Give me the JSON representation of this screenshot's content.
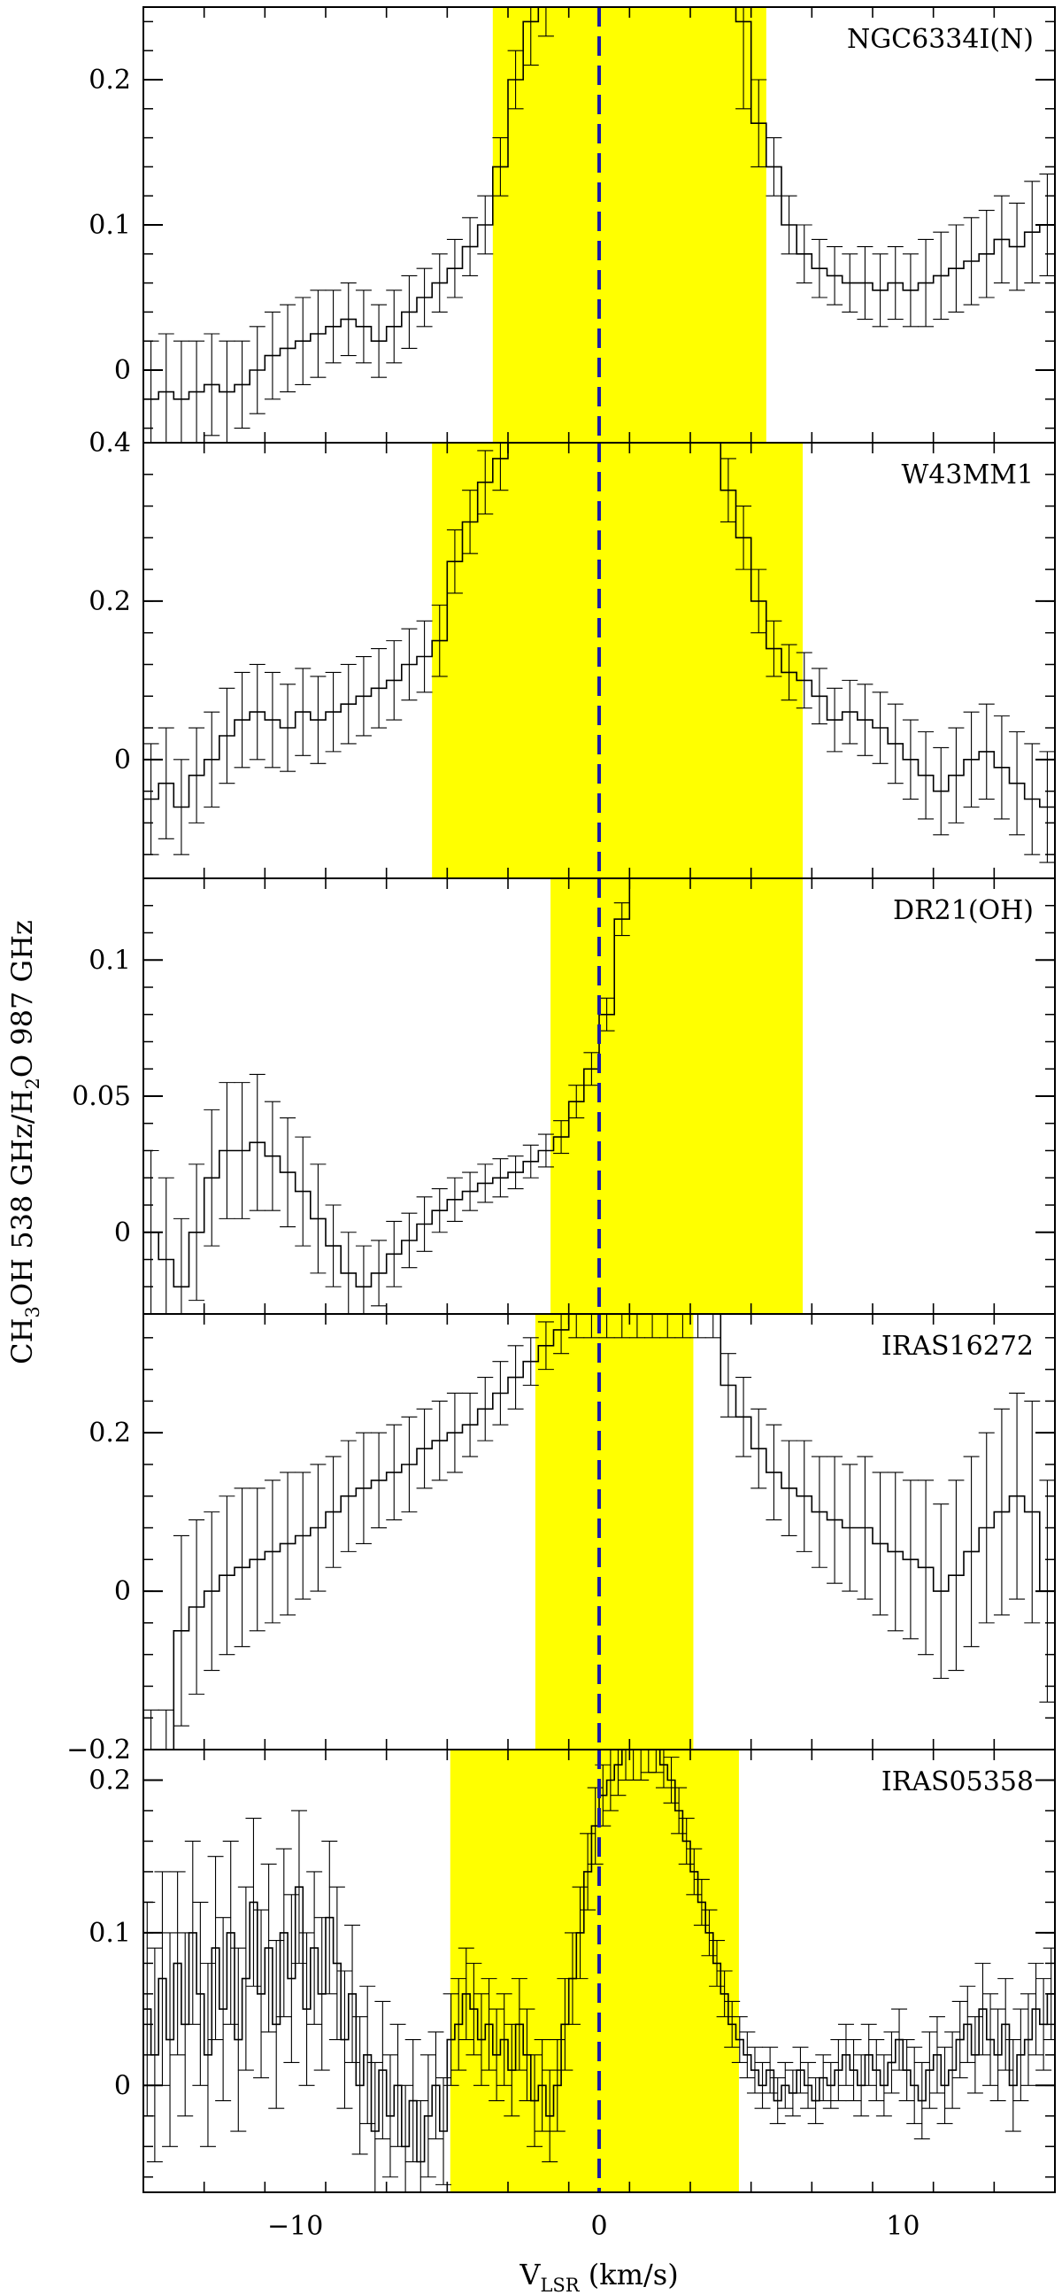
{
  "chart_data": {
    "type": "step",
    "xlabel": "V",
    "xlabel_sub": "LSR",
    "xlabel_unit": " (km/s)",
    "ylabel": {
      "parts": [
        {
          "t": "CH"
        },
        {
          "t": "3",
          "sub": true
        },
        {
          "t": "OH  538 GHz/H"
        },
        {
          "t": "2",
          "sub": true
        },
        {
          "t": "O 987 GHz"
        }
      ]
    },
    "xlim": [
      -15,
      15
    ],
    "xticks": [
      -10,
      0,
      10
    ],
    "xtick_labels": [
      "−10",
      "0",
      "10"
    ],
    "reference_line": {
      "x": 0,
      "color": "#1a1aa8",
      "style": "dashed"
    },
    "shade_color": "#ffff00",
    "panels": [
      {
        "name": "NGC6334I(N)",
        "ylim": [
          -0.05,
          0.25
        ],
        "yticks": [
          0,
          0.1,
          0.2
        ],
        "ytick_labels": [
          "0",
          "0.1",
          "0.2"
        ],
        "shade": [
          -3.5,
          5.5
        ],
        "x": [
          -15,
          -14.5,
          -14,
          -13.5,
          -13,
          -12.5,
          -12,
          -11.5,
          -11,
          -10.5,
          -10,
          -9.5,
          -9,
          -8.5,
          -8,
          -7.5,
          -7,
          -6.5,
          -6,
          -5.5,
          -5,
          -4.5,
          -4,
          -3.5,
          -3,
          -2.5,
          -2,
          -1.5,
          -1,
          -0.5,
          0,
          0.5,
          1,
          1.5,
          2,
          2.5,
          3,
          3.5,
          4,
          4.5,
          5,
          5.5,
          6,
          6.5,
          7,
          7.5,
          8,
          8.5,
          9,
          9.5,
          10,
          10.5,
          11,
          11.5,
          12,
          12.5,
          13,
          13.5,
          14,
          14.5
        ],
        "y": [
          -0.02,
          -0.015,
          -0.02,
          -0.015,
          -0.01,
          -0.015,
          -0.01,
          0.0,
          0.01,
          0.015,
          0.02,
          0.025,
          0.03,
          0.035,
          0.03,
          0.02,
          0.03,
          0.04,
          0.05,
          0.06,
          0.07,
          0.085,
          0.1,
          0.14,
          0.2,
          0.24,
          0.26,
          0.28,
          0.3,
          0.3,
          0.3,
          0.3,
          0.3,
          0.3,
          0.3,
          0.3,
          0.3,
          0.3,
          0.3,
          0.24,
          0.17,
          0.14,
          0.1,
          0.08,
          0.07,
          0.065,
          0.06,
          0.06,
          0.055,
          0.06,
          0.055,
          0.06,
          0.065,
          0.07,
          0.075,
          0.08,
          0.09,
          0.085,
          0.095,
          0.1
        ],
        "err": [
          0.04,
          0.04,
          0.04,
          0.035,
          0.035,
          0.035,
          0.03,
          0.03,
          0.03,
          0.03,
          0.03,
          0.03,
          0.025,
          0.025,
          0.025,
          0.025,
          0.025,
          0.025,
          0.02,
          0.02,
          0.02,
          0.02,
          0.02,
          0.02,
          0.02,
          0.03,
          0.03,
          0.03,
          0.03,
          0.03,
          0.03,
          0.03,
          0.03,
          0.03,
          0.03,
          0.03,
          0.03,
          0.03,
          0.03,
          0.06,
          0.03,
          0.02,
          0.02,
          0.02,
          0.02,
          0.02,
          0.02,
          0.025,
          0.025,
          0.025,
          0.025,
          0.03,
          0.03,
          0.03,
          0.03,
          0.03,
          0.03,
          0.03,
          0.035,
          0.035
        ]
      },
      {
        "name": "W43MM1",
        "ylim": [
          -0.15,
          0.4
        ],
        "yticks": [
          0,
          0.2,
          0.4
        ],
        "ytick_labels": [
          "0",
          "0.2",
          "0.4"
        ],
        "shade": [
          -5.5,
          6.7
        ],
        "x": [
          -15,
          -14.5,
          -14,
          -13.5,
          -13,
          -12.5,
          -12,
          -11.5,
          -11,
          -10.5,
          -10,
          -9.5,
          -9,
          -8.5,
          -8,
          -7.5,
          -7,
          -6.5,
          -6,
          -5.5,
          -5,
          -4.5,
          -4,
          -3.5,
          -3,
          -2.5,
          -2,
          -1.5,
          -1,
          -0.5,
          0,
          0.5,
          1,
          1.5,
          2,
          2.5,
          3,
          3.5,
          4,
          4.5,
          5,
          5.5,
          6,
          6.5,
          7,
          7.5,
          8,
          8.5,
          9,
          9.5,
          10,
          10.5,
          11,
          11.5,
          12,
          12.5,
          13,
          13.5,
          14,
          14.5
        ],
        "y": [
          -0.05,
          -0.03,
          -0.06,
          -0.02,
          0.0,
          0.03,
          0.05,
          0.06,
          0.05,
          0.04,
          0.06,
          0.05,
          0.06,
          0.07,
          0.08,
          0.09,
          0.1,
          0.12,
          0.13,
          0.15,
          0.25,
          0.3,
          0.35,
          0.38,
          0.45,
          0.5,
          0.5,
          0.5,
          0.5,
          0.5,
          0.5,
          0.5,
          0.5,
          0.5,
          0.5,
          0.5,
          0.5,
          0.5,
          0.34,
          0.28,
          0.2,
          0.14,
          0.11,
          0.1,
          0.08,
          0.05,
          0.06,
          0.05,
          0.04,
          0.02,
          0.0,
          -0.02,
          -0.04,
          -0.02,
          0.0,
          0.01,
          -0.01,
          -0.03,
          -0.05,
          -0.06
        ],
        "err": [
          0.07,
          0.07,
          0.06,
          0.06,
          0.06,
          0.06,
          0.06,
          0.06,
          0.06,
          0.055,
          0.055,
          0.055,
          0.05,
          0.05,
          0.05,
          0.05,
          0.05,
          0.045,
          0.045,
          0.045,
          0.04,
          0.04,
          0.04,
          0.04,
          0.04,
          0.05,
          0.05,
          0.05,
          0.05,
          0.05,
          0.05,
          0.05,
          0.05,
          0.05,
          0.05,
          0.05,
          0.05,
          0.05,
          0.04,
          0.04,
          0.04,
          0.035,
          0.035,
          0.035,
          0.035,
          0.04,
          0.04,
          0.045,
          0.045,
          0.05,
          0.05,
          0.055,
          0.055,
          0.06,
          0.06,
          0.06,
          0.065,
          0.065,
          0.07,
          0.07
        ]
      },
      {
        "name": "DR21(OH)",
        "ylim": [
          -0.03,
          0.13
        ],
        "yticks": [
          0,
          0.05,
          0.1
        ],
        "ytick_labels": [
          "0",
          "0.05",
          "0.1"
        ],
        "shade": [
          -1.6,
          6.7
        ],
        "x": [
          -15,
          -14.5,
          -14,
          -13.5,
          -13,
          -12.5,
          -12,
          -11.5,
          -11,
          -10.5,
          -10,
          -9.5,
          -9,
          -8.5,
          -8,
          -7.5,
          -7,
          -6.5,
          -6,
          -5.5,
          -5,
          -4.5,
          -4,
          -3.5,
          -3,
          -2.5,
          -2,
          -1.5,
          -1,
          -0.5,
          0,
          0.5,
          1,
          1.5,
          2,
          2.5,
          3,
          3.5,
          4,
          4.5,
          5,
          5.5,
          6,
          6.5,
          7,
          7.5,
          8,
          8.5,
          9,
          9.5,
          10,
          10.5,
          11,
          11.5,
          12,
          12.5,
          13,
          13.5,
          14,
          14.5
        ],
        "y": [
          0.0,
          -0.01,
          -0.02,
          0.0,
          0.02,
          0.03,
          0.03,
          0.033,
          0.028,
          0.022,
          0.015,
          0.005,
          -0.005,
          -0.015,
          -0.02,
          -0.015,
          -0.008,
          -0.003,
          0.003,
          0.008,
          0.012,
          0.015,
          0.018,
          0.02,
          0.022,
          0.026,
          0.03,
          0.035,
          0.048,
          0.06,
          0.08,
          0.115,
          0.14,
          0.14,
          0.14,
          0.14,
          0.14,
          0.14,
          0.14,
          0.14,
          0.14,
          0.14,
          0.14,
          0.14,
          0.14,
          0.14,
          0.14,
          0.14,
          0.14,
          0.14,
          0.14,
          0.14,
          0.14,
          0.14,
          0.14,
          0.14,
          0.14,
          0.14,
          0.14,
          0.14
        ],
        "err": [
          0.03,
          0.03,
          0.025,
          0.025,
          0.025,
          0.025,
          0.025,
          0.025,
          0.02,
          0.02,
          0.02,
          0.02,
          0.015,
          0.015,
          0.015,
          0.012,
          0.012,
          0.01,
          0.01,
          0.008,
          0.008,
          0.007,
          0.007,
          0.007,
          0.006,
          0.006,
          0.006,
          0.006,
          0.006,
          0.006,
          0.006,
          0.006,
          0.006,
          0.006,
          0.006,
          0.006,
          0.006,
          0.006,
          0.006,
          0.006,
          0.006,
          0.006,
          0.006,
          0.006,
          0.006,
          0.006,
          0.006,
          0.006,
          0.006,
          0.006,
          0.006,
          0.006,
          0.006,
          0.006,
          0.006,
          0.006,
          0.006,
          0.006,
          0.006,
          0.006
        ]
      },
      {
        "name": "IRAS16272",
        "ylim": [
          -0.2,
          0.35
        ],
        "yticks": [
          -0.2,
          0,
          0.2
        ],
        "ytick_labels": [
          "−0.2",
          "0",
          "0.2"
        ],
        "shade": [
          -2.1,
          3.1
        ],
        "x": [
          -15,
          -14.5,
          -14,
          -13.5,
          -13,
          -12.5,
          -12,
          -11.5,
          -11,
          -10.5,
          -10,
          -9.5,
          -9,
          -8.5,
          -8,
          -7.5,
          -7,
          -6.5,
          -6,
          -5.5,
          -5,
          -4.5,
          -4,
          -3.5,
          -3,
          -2.5,
          -2,
          -1.5,
          -1,
          -0.5,
          0,
          0.5,
          1,
          1.5,
          2,
          2.5,
          3,
          3.5,
          4,
          4.5,
          5,
          5.5,
          6,
          6.5,
          7,
          7.5,
          8,
          8.5,
          9,
          9.5,
          10,
          10.5,
          11,
          11.5,
          12,
          12.5,
          13,
          13.5,
          14,
          14.5
        ],
        "y": [
          -0.3,
          -0.3,
          -0.05,
          -0.02,
          0.0,
          0.02,
          0.03,
          0.04,
          0.05,
          0.06,
          0.07,
          0.08,
          0.1,
          0.12,
          0.13,
          0.14,
          0.15,
          0.16,
          0.18,
          0.19,
          0.2,
          0.21,
          0.23,
          0.25,
          0.27,
          0.29,
          0.31,
          0.33,
          0.35,
          0.35,
          0.35,
          0.35,
          0.35,
          0.35,
          0.35,
          0.35,
          0.35,
          0.35,
          0.26,
          0.22,
          0.18,
          0.15,
          0.13,
          0.12,
          0.1,
          0.09,
          0.08,
          0.08,
          0.06,
          0.05,
          0.04,
          0.03,
          0.0,
          0.02,
          0.05,
          0.08,
          0.1,
          0.12,
          0.1,
          0.0
        ],
        "err": [
          0.15,
          0.15,
          0.12,
          0.11,
          0.1,
          0.1,
          0.1,
          0.09,
          0.09,
          0.09,
          0.08,
          0.08,
          0.07,
          0.07,
          0.07,
          0.06,
          0.06,
          0.06,
          0.05,
          0.05,
          0.05,
          0.04,
          0.04,
          0.04,
          0.04,
          0.03,
          0.03,
          0.03,
          0.03,
          0.03,
          0.03,
          0.03,
          0.03,
          0.03,
          0.03,
          0.03,
          0.03,
          0.03,
          0.04,
          0.05,
          0.05,
          0.06,
          0.06,
          0.07,
          0.07,
          0.08,
          0.08,
          0.09,
          0.09,
          0.1,
          0.1,
          0.11,
          0.11,
          0.12,
          0.12,
          0.12,
          0.13,
          0.13,
          0.14,
          0.14
        ]
      },
      {
        "name": "IRAS05358",
        "ylim": [
          -0.07,
          0.22
        ],
        "yticks": [
          0,
          0.1,
          0.2
        ],
        "ytick_labels": [
          "0",
          "0.1",
          "0.2"
        ],
        "shade": [
          -4.9,
          4.6
        ],
        "x": [
          -15,
          -14.75,
          -14.5,
          -14.25,
          -14,
          -13.75,
          -13.5,
          -13.25,
          -13,
          -12.75,
          -12.5,
          -12.25,
          -12,
          -11.75,
          -11.5,
          -11.25,
          -11,
          -10.75,
          -10.5,
          -10.25,
          -10,
          -9.75,
          -9.5,
          -9.25,
          -9,
          -8.75,
          -8.5,
          -8.25,
          -8,
          -7.75,
          -7.5,
          -7.25,
          -7,
          -6.75,
          -6.5,
          -6.25,
          -6,
          -5.75,
          -5.5,
          -5.25,
          -5,
          -4.75,
          -4.5,
          -4.25,
          -4,
          -3.75,
          -3.5,
          -3.25,
          -3,
          -2.75,
          -2.5,
          -2.25,
          -2,
          -1.75,
          -1.5,
          -1.25,
          -1,
          -0.75,
          -0.5,
          -0.25,
          0,
          0.25,
          0.5,
          0.75,
          1,
          1.25,
          1.5,
          1.75,
          2,
          2.25,
          2.5,
          2.75,
          3,
          3.25,
          3.5,
          3.75,
          4,
          4.25,
          4.5,
          4.75,
          5,
          5.25,
          5.5,
          5.75,
          6,
          6.25,
          6.5,
          6.75,
          7,
          7.25,
          7.5,
          7.75,
          8,
          8.25,
          8.5,
          8.75,
          9,
          9.25,
          9.5,
          9.75,
          10,
          10.25,
          10.5,
          10.75,
          11,
          11.25,
          11.5,
          11.75,
          12,
          12.25,
          12.5,
          12.75,
          13,
          13.25,
          13.5,
          13.75,
          14,
          14.25,
          14.5,
          14.75
        ],
        "y": [
          0.05,
          0.02,
          0.07,
          0.03,
          0.08,
          0.04,
          0.1,
          0.06,
          0.02,
          0.09,
          0.05,
          0.1,
          0.03,
          0.07,
          0.12,
          0.06,
          0.09,
          0.04,
          0.1,
          0.07,
          0.13,
          0.05,
          0.09,
          0.06,
          0.11,
          0.08,
          0.03,
          0.06,
          0.0,
          0.02,
          -0.03,
          0.01,
          -0.02,
          0.0,
          -0.04,
          -0.01,
          -0.05,
          -0.02,
          0.0,
          -0.03,
          0.03,
          0.04,
          0.06,
          0.05,
          0.03,
          0.04,
          0.02,
          0.03,
          0.01,
          0.04,
          0.02,
          -0.01,
          0.0,
          -0.02,
          0.0,
          0.04,
          0.07,
          0.1,
          0.14,
          0.17,
          0.19,
          0.2,
          0.21,
          0.22,
          0.22,
          0.22,
          0.22,
          0.22,
          0.21,
          0.2,
          0.18,
          0.16,
          0.14,
          0.12,
          0.1,
          0.08,
          0.06,
          0.04,
          0.03,
          0.02,
          0.01,
          0.0,
          0.01,
          -0.01,
          0.0,
          -0.005,
          0.01,
          0.0,
          -0.01,
          0.005,
          0.0,
          0.01,
          0.02,
          0.01,
          0.0,
          0.02,
          0.01,
          0.0,
          0.015,
          0.03,
          0.01,
          0.0,
          -0.01,
          0.01,
          0.02,
          0.0,
          0.01,
          0.03,
          0.04,
          0.02,
          0.05,
          0.03,
          0.02,
          0.04,
          0.0,
          0.02,
          0.03,
          0.05,
          0.04,
          0.06
        ],
        "err": [
          0.07,
          0.07,
          0.07,
          0.07,
          0.06,
          0.06,
          0.06,
          0.06,
          0.06,
          0.06,
          0.06,
          0.06,
          0.06,
          0.06,
          0.055,
          0.055,
          0.055,
          0.055,
          0.055,
          0.055,
          0.05,
          0.05,
          0.05,
          0.05,
          0.05,
          0.05,
          0.045,
          0.045,
          0.045,
          0.045,
          0.045,
          0.045,
          0.04,
          0.04,
          0.04,
          0.04,
          0.04,
          0.04,
          0.035,
          0.035,
          0.03,
          0.03,
          0.03,
          0.03,
          0.03,
          0.03,
          0.03,
          0.03,
          0.03,
          0.03,
          0.03,
          0.03,
          0.03,
          0.03,
          0.03,
          0.03,
          0.03,
          0.03,
          0.025,
          0.025,
          0.02,
          0.02,
          0.02,
          0.02,
          0.02,
          0.02,
          0.015,
          0.015,
          0.015,
          0.015,
          0.015,
          0.015,
          0.015,
          0.015,
          0.015,
          0.015,
          0.015,
          0.015,
          0.015,
          0.015,
          0.015,
          0.015,
          0.015,
          0.015,
          0.015,
          0.015,
          0.015,
          0.015,
          0.015,
          0.015,
          0.015,
          0.02,
          0.02,
          0.02,
          0.02,
          0.02,
          0.02,
          0.02,
          0.02,
          0.02,
          0.02,
          0.025,
          0.025,
          0.025,
          0.025,
          0.025,
          0.025,
          0.025,
          0.025,
          0.025,
          0.03,
          0.03,
          0.03,
          0.03,
          0.03,
          0.03,
          0.03,
          0.03,
          0.03,
          0.03
        ]
      }
    ]
  }
}
